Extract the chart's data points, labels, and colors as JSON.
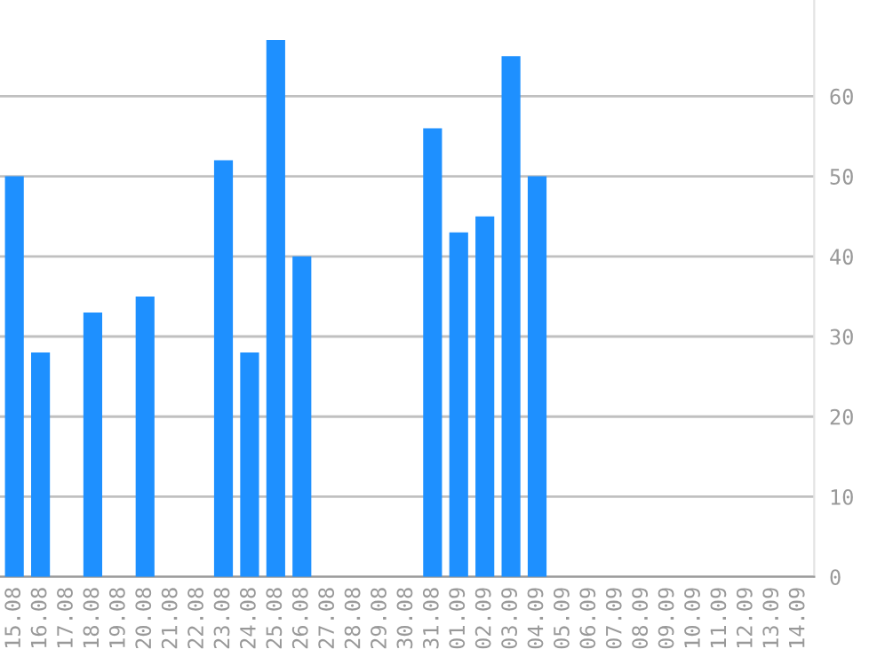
{
  "chart_data": {
    "type": "bar",
    "categories": [
      "15.08",
      "16.08",
      "17.08",
      "18.08",
      "19.08",
      "20.08",
      "21.08",
      "22.08",
      "23.08",
      "24.08",
      "25.08",
      "26.08",
      "27.08",
      "28.08",
      "29.08",
      "30.08",
      "31.08",
      "01.09",
      "02.09",
      "03.09",
      "04.09",
      "05.09",
      "06.09",
      "07.09",
      "08.09",
      "09.09",
      "10.09",
      "11.09",
      "12.09",
      "13.09",
      "14.09"
    ],
    "values": [
      50,
      28,
      0,
      33,
      0,
      35,
      0,
      0,
      52,
      28,
      67,
      40,
      0,
      0,
      0,
      0,
      56,
      43,
      45,
      65,
      50,
      0,
      0,
      0,
      0,
      0,
      0,
      0,
      0,
      0,
      0
    ],
    "color": "#1e90ff",
    "ylim": [
      0,
      72
    ],
    "yticks": [
      0,
      10,
      20,
      30,
      40,
      50,
      60
    ],
    "grid": "y"
  }
}
